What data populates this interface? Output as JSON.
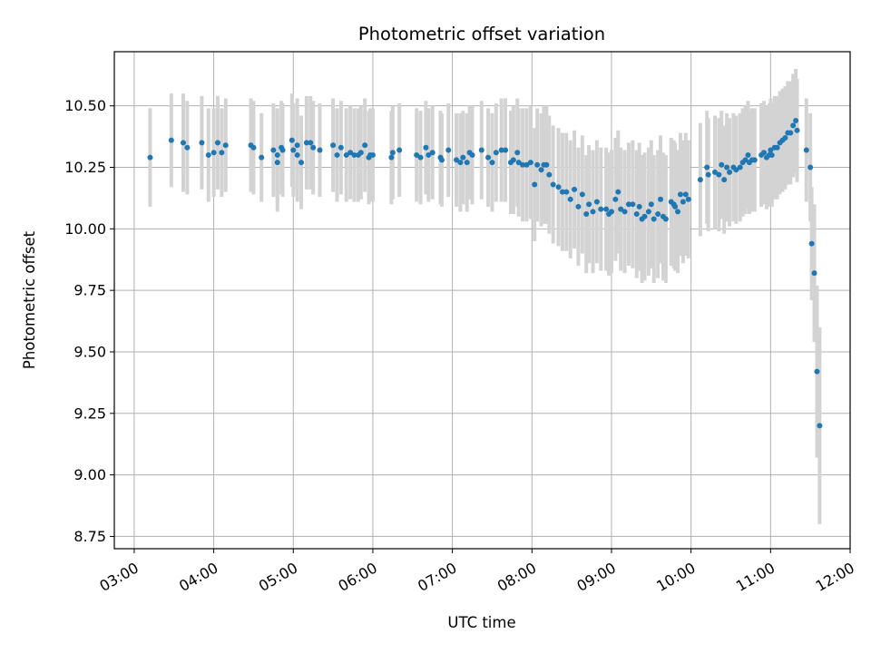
{
  "chart_data": {
    "type": "scatter",
    "title": "Photometric offset variation",
    "xlabel": "UTC time",
    "ylabel": "Photometric offset",
    "x_unit": "hours UTC",
    "xlim": [
      "02:45",
      "12:00"
    ],
    "ylim": [
      8.7,
      10.72
    ],
    "x_ticks": [
      "03:00",
      "04:00",
      "05:00",
      "06:00",
      "07:00",
      "08:00",
      "09:00",
      "10:00",
      "11:00",
      "12:00"
    ],
    "y_ticks": [
      "8.75",
      "9.00",
      "9.25",
      "9.50",
      "9.75",
      "10.00",
      "10.25",
      "10.50"
    ],
    "grid": true,
    "colors": {
      "point": "#1f77b4",
      "errorbar": "#d3d3d3",
      "grid": "#b0b0b0"
    },
    "series": [
      {
        "points": [
          [
            "03:12",
            10.29,
            0.2
          ],
          [
            "03:28",
            10.36,
            0.19
          ],
          [
            "03:37",
            10.35,
            0.2
          ],
          [
            "03:40",
            10.33,
            0.19
          ],
          [
            "03:51",
            10.35,
            0.19
          ],
          [
            "03:56",
            10.3,
            0.19
          ],
          [
            "04:00",
            10.31,
            0.18
          ],
          [
            "04:03",
            10.35,
            0.19
          ],
          [
            "04:06",
            10.31,
            0.18
          ],
          [
            "04:09",
            10.34,
            0.19
          ],
          [
            "04:28",
            10.34,
            0.19
          ],
          [
            "04:30",
            10.33,
            0.19
          ],
          [
            "04:36",
            10.29,
            0.18
          ],
          [
            "04:45",
            10.32,
            0.19
          ],
          [
            "04:48",
            10.27,
            0.2
          ],
          [
            "04:48",
            10.3,
            0.19
          ],
          [
            "04:51",
            10.33,
            0.19
          ],
          [
            "04:52",
            10.32,
            0.19
          ],
          [
            "04:59",
            10.36,
            0.19
          ],
          [
            "05:00",
            10.32,
            0.19
          ],
          [
            "05:03",
            10.34,
            0.19
          ],
          [
            "05:03",
            10.3,
            0.19
          ],
          [
            "05:06",
            10.27,
            0.19
          ],
          [
            "05:10",
            10.35,
            0.19
          ],
          [
            "05:13",
            10.35,
            0.19
          ],
          [
            "05:15",
            10.33,
            0.19
          ],
          [
            "05:20",
            10.32,
            0.19
          ],
          [
            "05:30",
            10.34,
            0.19
          ],
          [
            "05:33",
            10.3,
            0.19
          ],
          [
            "05:36",
            10.33,
            0.19
          ],
          [
            "05:40",
            10.3,
            0.19
          ],
          [
            "05:43",
            10.31,
            0.19
          ],
          [
            "05:46",
            10.3,
            0.19
          ],
          [
            "05:49",
            10.3,
            0.19
          ],
          [
            "05:51",
            10.31,
            0.19
          ],
          [
            "05:54",
            10.34,
            0.19
          ],
          [
            "05:57",
            10.29,
            0.19
          ],
          [
            "05:58",
            10.3,
            0.19
          ],
          [
            "06:00",
            10.3,
            0.19
          ],
          [
            "06:14",
            10.29,
            0.19
          ],
          [
            "06:15",
            10.31,
            0.19
          ],
          [
            "06:20",
            10.32,
            0.19
          ],
          [
            "06:33",
            10.3,
            0.19
          ],
          [
            "06:36",
            10.29,
            0.19
          ],
          [
            "06:40",
            10.33,
            0.19
          ],
          [
            "06:42",
            10.3,
            0.19
          ],
          [
            "06:45",
            10.31,
            0.19
          ],
          [
            "06:51",
            10.29,
            0.19
          ],
          [
            "06:52",
            10.28,
            0.19
          ],
          [
            "06:57",
            10.32,
            0.19
          ],
          [
            "07:03",
            10.28,
            0.19
          ],
          [
            "07:06",
            10.27,
            0.2
          ],
          [
            "07:08",
            10.29,
            0.19
          ],
          [
            "07:11",
            10.27,
            0.2
          ],
          [
            "07:13",
            10.31,
            0.19
          ],
          [
            "07:15",
            10.3,
            0.2
          ],
          [
            "07:22",
            10.32,
            0.2
          ],
          [
            "07:27",
            10.29,
            0.2
          ],
          [
            "07:30",
            10.27,
            0.2
          ],
          [
            "07:33",
            10.31,
            0.2
          ],
          [
            "07:37",
            10.32,
            0.21
          ],
          [
            "07:40",
            10.32,
            0.21
          ],
          [
            "07:44",
            10.27,
            0.21
          ],
          [
            "07:46",
            10.28,
            0.22
          ],
          [
            "07:49",
            10.31,
            0.22
          ],
          [
            "07:50",
            10.27,
            0.22
          ],
          [
            "07:53",
            10.26,
            0.23
          ],
          [
            "07:56",
            10.26,
            0.23
          ],
          [
            "07:59",
            10.27,
            0.23
          ],
          [
            "08:02",
            10.18,
            0.23
          ],
          [
            "08:04",
            10.26,
            0.23
          ],
          [
            "08:07",
            10.24,
            0.23
          ],
          [
            "08:09",
            10.26,
            0.24
          ],
          [
            "08:11",
            10.26,
            0.24
          ],
          [
            "08:13",
            10.22,
            0.24
          ],
          [
            "08:16",
            10.18,
            0.24
          ],
          [
            "08:20",
            10.17,
            0.24
          ],
          [
            "08:23",
            10.15,
            0.24
          ],
          [
            "08:26",
            10.15,
            0.24
          ],
          [
            "08:29",
            10.12,
            0.24
          ],
          [
            "08:32",
            10.16,
            0.24
          ],
          [
            "08:35",
            10.09,
            0.24
          ],
          [
            "08:38",
            10.14,
            0.24
          ],
          [
            "08:41",
            10.06,
            0.24
          ],
          [
            "08:43",
            10.1,
            0.24
          ],
          [
            "08:46",
            10.07,
            0.25
          ],
          [
            "08:49",
            10.11,
            0.25
          ],
          [
            "08:52",
            10.08,
            0.25
          ],
          [
            "08:56",
            10.08,
            0.25
          ],
          [
            "08:58",
            10.06,
            0.25
          ],
          [
            "09:00",
            10.07,
            0.25
          ],
          [
            "09:03",
            10.12,
            0.25
          ],
          [
            "09:05",
            10.15,
            0.25
          ],
          [
            "09:07",
            10.08,
            0.25
          ],
          [
            "09:10",
            10.07,
            0.25
          ],
          [
            "09:13",
            10.1,
            0.25
          ],
          [
            "09:16",
            10.1,
            0.26
          ],
          [
            "09:19",
            10.06,
            0.26
          ],
          [
            "09:21",
            10.09,
            0.26
          ],
          [
            "09:23",
            10.04,
            0.26
          ],
          [
            "09:25",
            10.05,
            0.26
          ],
          [
            "09:28",
            10.07,
            0.26
          ],
          [
            "09:30",
            10.1,
            0.26
          ],
          [
            "09:32",
            10.04,
            0.26
          ],
          [
            "09:35",
            10.06,
            0.26
          ],
          [
            "09:37",
            10.12,
            0.26
          ],
          [
            "09:39",
            10.05,
            0.26
          ],
          [
            "09:41",
            10.04,
            0.26
          ],
          [
            "09:45",
            10.11,
            0.26
          ],
          [
            "09:47",
            10.1,
            0.26
          ],
          [
            "09:48",
            10.09,
            0.26
          ],
          [
            "09:50",
            10.07,
            0.25
          ],
          [
            "09:52",
            10.14,
            0.25
          ],
          [
            "09:54",
            10.11,
            0.25
          ],
          [
            "09:56",
            10.14,
            0.25
          ],
          [
            "09:58",
            10.12,
            0.24
          ],
          [
            "10:07",
            10.2,
            0.23
          ],
          [
            "10:12",
            10.25,
            0.23
          ],
          [
            "10:13",
            10.22,
            0.23
          ],
          [
            "10:18",
            10.23,
            0.23
          ],
          [
            "10:21",
            10.22,
            0.23
          ],
          [
            "10:23",
            10.26,
            0.22
          ],
          [
            "10:25",
            10.2,
            0.22
          ],
          [
            "10:27",
            10.25,
            0.22
          ],
          [
            "10:29",
            10.23,
            0.22
          ],
          [
            "10:32",
            10.25,
            0.22
          ],
          [
            "10:34",
            10.24,
            0.22
          ],
          [
            "10:37",
            10.25,
            0.22
          ],
          [
            "10:39",
            10.27,
            0.22
          ],
          [
            "10:41",
            10.28,
            0.22
          ],
          [
            "10:43",
            10.3,
            0.22
          ],
          [
            "10:44",
            10.27,
            0.21
          ],
          [
            "10:46",
            10.28,
            0.21
          ],
          [
            "10:48",
            10.28,
            0.21
          ],
          [
            "10:53",
            10.3,
            0.21
          ],
          [
            "10:55",
            10.31,
            0.21
          ],
          [
            "10:57",
            10.29,
            0.21
          ],
          [
            "10:59",
            10.3,
            0.21
          ],
          [
            "11:00",
            10.32,
            0.21
          ],
          [
            "11:01",
            10.3,
            0.21
          ],
          [
            "11:03",
            10.33,
            0.21
          ],
          [
            "11:05",
            10.33,
            0.21
          ],
          [
            "11:07",
            10.35,
            0.21
          ],
          [
            "11:09",
            10.36,
            0.21
          ],
          [
            "11:11",
            10.37,
            0.21
          ],
          [
            "11:13",
            10.39,
            0.21
          ],
          [
            "11:15",
            10.39,
            0.21
          ],
          [
            "11:17",
            10.42,
            0.21
          ],
          [
            "11:19",
            10.44,
            0.21
          ],
          [
            "11:20",
            10.4,
            0.21
          ],
          [
            "11:27",
            10.32,
            0.21
          ],
          [
            "11:30",
            10.25,
            0.22
          ],
          [
            "11:31",
            9.94,
            0.23
          ],
          [
            "11:33",
            9.82,
            0.28
          ],
          [
            "11:35",
            9.42,
            0.35
          ],
          [
            "11:37",
            9.2,
            0.4
          ]
        ]
      }
    ]
  }
}
